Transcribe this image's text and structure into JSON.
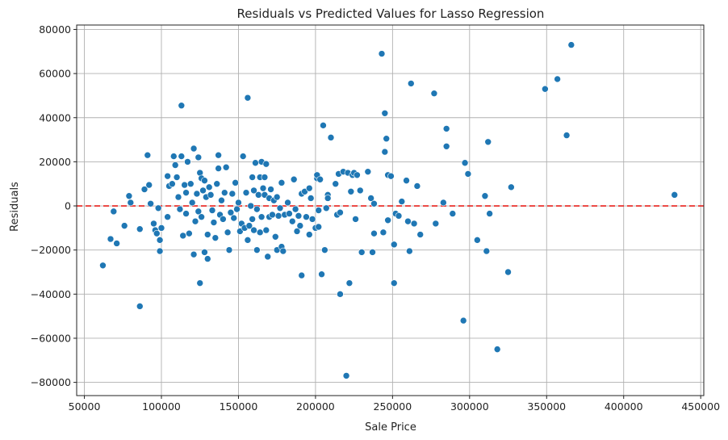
{
  "chart_data": {
    "type": "scatter",
    "title": "Residuals vs Predicted Values for Lasso Regression",
    "xlabel": "Sale Price",
    "ylabel": "Residuals",
    "xlim": [
      45000,
      452000
    ],
    "ylim": [
      -86000,
      82000
    ],
    "x_ticks": [
      50000,
      100000,
      150000,
      200000,
      250000,
      300000,
      350000,
      400000,
      450000
    ],
    "y_ticks": [
      -80000,
      -60000,
      -40000,
      -20000,
      0,
      20000,
      40000,
      60000,
      80000
    ],
    "x_tick_labels": [
      "50000",
      "100000",
      "150000",
      "200000",
      "250000",
      "300000",
      "350000",
      "400000",
      "450000"
    ],
    "y_tick_labels": [
      "−80000",
      "−60000",
      "−40000",
      "−20000",
      "0",
      "20000",
      "40000",
      "60000",
      "80000"
    ],
    "grid": true,
    "reference_line": {
      "y": 0,
      "style": "dashed",
      "color": "#e8201c"
    },
    "colors": {
      "point": "#1f77b4",
      "grid": "#b0b0b0",
      "axis": "#222222"
    },
    "points": [
      [
        62000,
        -27000
      ],
      [
        67000,
        -15000
      ],
      [
        69000,
        -2500
      ],
      [
        71000,
        -17000
      ],
      [
        76000,
        -9000
      ],
      [
        79000,
        4500
      ],
      [
        80000,
        1500
      ],
      [
        86000,
        -45500
      ],
      [
        86000,
        -10500
      ],
      [
        89000,
        7500
      ],
      [
        91000,
        23000
      ],
      [
        92000,
        9500
      ],
      [
        93000,
        1000
      ],
      [
        95000,
        -8000
      ],
      [
        96000,
        -11000
      ],
      [
        97000,
        -12500
      ],
      [
        98000,
        -1000
      ],
      [
        99000,
        -15500
      ],
      [
        99000,
        -20500
      ],
      [
        100000,
        -10000
      ],
      [
        104000,
        -5000
      ],
      [
        104000,
        13500
      ],
      [
        105000,
        9000
      ],
      [
        107000,
        10000
      ],
      [
        108000,
        22500
      ],
      [
        109000,
        18500
      ],
      [
        110000,
        13000
      ],
      [
        111000,
        4000
      ],
      [
        112000,
        -1500
      ],
      [
        113000,
        22500
      ],
      [
        113000,
        45500
      ],
      [
        114000,
        -13500
      ],
      [
        115000,
        9500
      ],
      [
        116000,
        -3500
      ],
      [
        116000,
        6000
      ],
      [
        117000,
        20000
      ],
      [
        118000,
        -12500
      ],
      [
        119000,
        10000
      ],
      [
        120000,
        1500
      ],
      [
        121000,
        26000
      ],
      [
        121000,
        -22000
      ],
      [
        122000,
        -7000
      ],
      [
        123000,
        5500
      ],
      [
        124000,
        -2500
      ],
      [
        124000,
        22000
      ],
      [
        125000,
        15000
      ],
      [
        125000,
        -35000
      ],
      [
        126000,
        12500
      ],
      [
        126000,
        -5000
      ],
      [
        127000,
        7000
      ],
      [
        128000,
        11500
      ],
      [
        128000,
        -21000
      ],
      [
        129000,
        4000
      ],
      [
        130000,
        -13000
      ],
      [
        130000,
        -24000
      ],
      [
        131000,
        8500
      ],
      [
        132000,
        5000
      ],
      [
        133000,
        -2000
      ],
      [
        134000,
        -7500
      ],
      [
        135000,
        -14500
      ],
      [
        136000,
        10000
      ],
      [
        137000,
        23000
      ],
      [
        137000,
        17000
      ],
      [
        138000,
        -4000
      ],
      [
        139000,
        2500
      ],
      [
        140000,
        -6000
      ],
      [
        141000,
        6000
      ],
      [
        142000,
        17500
      ],
      [
        143000,
        -12000
      ],
      [
        144000,
        -20000
      ],
      [
        145000,
        -3000
      ],
      [
        146000,
        5500
      ],
      [
        147000,
        -5500
      ],
      [
        148000,
        10500
      ],
      [
        149000,
        -1500
      ],
      [
        150000,
        1500
      ],
      [
        151000,
        -11500
      ],
      [
        152000,
        -8000
      ],
      [
        153000,
        22500
      ],
      [
        154000,
        -10000
      ],
      [
        155000,
        6000
      ],
      [
        156000,
        49000
      ],
      [
        156000,
        -15500
      ],
      [
        157000,
        -9000
      ],
      [
        158000,
        0
      ],
      [
        159000,
        13000
      ],
      [
        159000,
        -6000
      ],
      [
        160000,
        7000
      ],
      [
        160000,
        -11000
      ],
      [
        161000,
        19500
      ],
      [
        162000,
        -1500
      ],
      [
        162000,
        -20000
      ],
      [
        163000,
        5000
      ],
      [
        164000,
        13000
      ],
      [
        164000,
        -12000
      ],
      [
        165000,
        20000
      ],
      [
        165000,
        -5000
      ],
      [
        166000,
        8000
      ],
      [
        167000,
        13000
      ],
      [
        167000,
        5000
      ],
      [
        168000,
        -11000
      ],
      [
        168000,
        19000
      ],
      [
        169000,
        -23000
      ],
      [
        170000,
        3500
      ],
      [
        170000,
        -5000
      ],
      [
        171000,
        7500
      ],
      [
        172000,
        -4000
      ],
      [
        173000,
        2500
      ],
      [
        174000,
        -14000
      ],
      [
        175000,
        4000
      ],
      [
        175000,
        -20000
      ],
      [
        176000,
        -4500
      ],
      [
        177000,
        -1000
      ],
      [
        178000,
        10500
      ],
      [
        178000,
        -18500
      ],
      [
        179000,
        -20500
      ],
      [
        180000,
        -4000
      ],
      [
        182000,
        1500
      ],
      [
        183000,
        -3500
      ],
      [
        185000,
        -7000
      ],
      [
        186000,
        12000
      ],
      [
        187000,
        -1500
      ],
      [
        188000,
        -11500
      ],
      [
        189000,
        -4500
      ],
      [
        190000,
        -9000
      ],
      [
        191000,
        5500
      ],
      [
        191000,
        -31500
      ],
      [
        193000,
        6500
      ],
      [
        194000,
        -5000
      ],
      [
        196000,
        8000
      ],
      [
        196000,
        -13000
      ],
      [
        197000,
        3500
      ],
      [
        198000,
        -6000
      ],
      [
        200000,
        -10000
      ],
      [
        201000,
        12500
      ],
      [
        201000,
        14000
      ],
      [
        202000,
        -9500
      ],
      [
        202000,
        -2000
      ],
      [
        203000,
        12000
      ],
      [
        204000,
        -31000
      ],
      [
        205000,
        36500
      ],
      [
        206000,
        -20000
      ],
      [
        207000,
        -1000
      ],
      [
        208000,
        5000
      ],
      [
        208000,
        3500
      ],
      [
        210000,
        31000
      ],
      [
        213000,
        10000
      ],
      [
        214000,
        -4000
      ],
      [
        215000,
        14500
      ],
      [
        216000,
        -40000
      ],
      [
        216000,
        -3000
      ],
      [
        218000,
        15500
      ],
      [
        220000,
        -77000
      ],
      [
        221000,
        15000
      ],
      [
        222000,
        -35000
      ],
      [
        223000,
        6500
      ],
      [
        224000,
        14000
      ],
      [
        225000,
        15000
      ],
      [
        226000,
        -6000
      ],
      [
        227000,
        14000
      ],
      [
        229000,
        7000
      ],
      [
        230000,
        -21000
      ],
      [
        234000,
        15500
      ],
      [
        236000,
        3500
      ],
      [
        237000,
        -21000
      ],
      [
        238000,
        1000
      ],
      [
        238000,
        -12500
      ],
      [
        243000,
        69000
      ],
      [
        244000,
        -12000
      ],
      [
        245000,
        24500
      ],
      [
        245000,
        42000
      ],
      [
        246000,
        30500
      ],
      [
        247000,
        14000
      ],
      [
        247000,
        -6500
      ],
      [
        249000,
        13500
      ],
      [
        251000,
        -35000
      ],
      [
        251000,
        -17500
      ],
      [
        252000,
        -3500
      ],
      [
        254000,
        -4500
      ],
      [
        256000,
        2000
      ],
      [
        259000,
        11500
      ],
      [
        260000,
        -7000
      ],
      [
        261000,
        -20500
      ],
      [
        262000,
        55500
      ],
      [
        264000,
        -8000
      ],
      [
        266000,
        9000
      ],
      [
        268000,
        -13000
      ],
      [
        277000,
        51000
      ],
      [
        278000,
        -8000
      ],
      [
        283000,
        1500
      ],
      [
        285000,
        35000
      ],
      [
        285000,
        27000
      ],
      [
        289000,
        -3500
      ],
      [
        296000,
        -52000
      ],
      [
        297000,
        19500
      ],
      [
        299000,
        14500
      ],
      [
        305000,
        -15500
      ],
      [
        310000,
        4500
      ],
      [
        311000,
        -20500
      ],
      [
        312000,
        29000
      ],
      [
        313000,
        -3500
      ],
      [
        318000,
        -65000
      ],
      [
        325000,
        -30000
      ],
      [
        327000,
        8500
      ],
      [
        349000,
        53000
      ],
      [
        357000,
        57500
      ],
      [
        363000,
        32000
      ],
      [
        366000,
        73000
      ],
      [
        433000,
        5000
      ]
    ]
  }
}
